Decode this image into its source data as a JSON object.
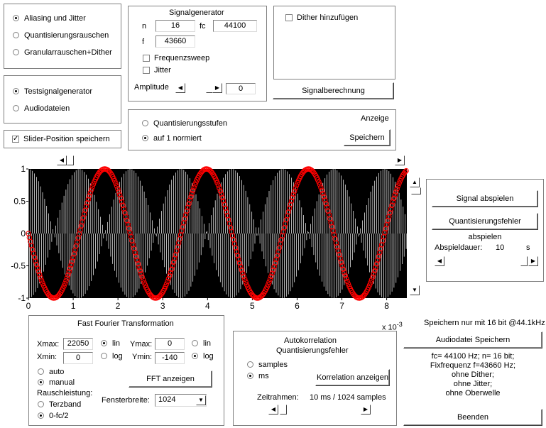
{
  "mode": {
    "options": [
      "Aliasing und Jitter",
      "Quantisierungsrauschen",
      "Granularrauschen+Dither"
    ],
    "selected": 0
  },
  "source": {
    "options": [
      "Testsignalgenerator",
      "Audiodateien"
    ],
    "selected": 0
  },
  "slider_save": {
    "label": "Slider-Position speichern",
    "checked": true
  },
  "generator": {
    "title": "Signalgenerator",
    "n_label": "n",
    "n_value": "16",
    "fc_label": "fc",
    "fc_value": "44100",
    "f_label": "f",
    "f_value": "43660",
    "freq_sweep": "Frequenzsweep",
    "jitter": "Jitter",
    "amplitude_label": "Amplitude",
    "amplitude_value": "0"
  },
  "dither": {
    "label": "Dither hinzufügen",
    "checked": false
  },
  "signal_calc_button": "Signalberechnung",
  "display": {
    "title": "Anzeige",
    "options": [
      "Quantisierungsstufen",
      "auf 1 normiert"
    ],
    "selected": 1,
    "save_button": "Speichern"
  },
  "chart_data": {
    "type": "line",
    "title": "",
    "xlabel": "",
    "ylabel": "",
    "x_multiplier_label": "x 10",
    "x_multiplier_exp": "-3",
    "xlim": [
      0,
      8.45
    ],
    "ylim": [
      -1,
      1
    ],
    "xticks": [
      "0",
      "1",
      "2",
      "3",
      "4",
      "5",
      "6",
      "7",
      "8"
    ],
    "yticks": [
      "1",
      "0.5",
      "0",
      "-0.5",
      "-1"
    ],
    "series": [
      {
        "description": "sampled signal (white stems on black)",
        "frequency_hz": 43660,
        "color": "#ffffff"
      },
      {
        "description": "aliased sine, red circle markers",
        "frequency_hz": 440,
        "amplitude": 1,
        "color": "#ff0000"
      }
    ]
  },
  "playback": {
    "play_button": "Signal abspielen",
    "error_button": "Quantisierungsfehler abspielen",
    "duration_label": "Abspieldauer:",
    "duration_value": "10",
    "duration_unit": "s"
  },
  "fft": {
    "title": "Fast Fourier Transformation",
    "xmax_label": "Xmax:",
    "xmax_value": "22050",
    "xmin_label": "Xmin:",
    "xmin_value": "0",
    "ymax_label": "Ymax:",
    "ymax_value": "0",
    "ymin_label": "Ymin:",
    "ymin_value": "-140",
    "x_lin": "lin",
    "x_log": "log",
    "x_scale": "lin",
    "y_lin": "lin",
    "y_log": "log",
    "y_scale": "log",
    "range_options": [
      "auto",
      "manual"
    ],
    "range_selected": 1,
    "noise_label": "Rauschleistung:",
    "noise_options": [
      "Terzband",
      "0-fc/2"
    ],
    "noise_selected": 1,
    "window_label": "Fensterbreite:",
    "window_value": "1024",
    "show_button": "FFT anzeigen"
  },
  "autocorr": {
    "title_line1": "Autokorrelation",
    "title_line2": "Quantisierungsfehler",
    "options": [
      "samples",
      "ms"
    ],
    "selected": 1,
    "show_button": "Korrelation anzeigen",
    "time_label": "Zeitrahmen:",
    "time_value": "10 ms / 1024 samples"
  },
  "save_note": "Speichern nur mit 16 bit @44.1kHz",
  "audio_save_button": "Audiodatei Speichern",
  "info": [
    "fc= 44100 Hz; n= 16 bit;",
    "Fixfrequenz f=43660 Hz;",
    "ohne Dither;",
    "ohne Jitter;",
    "ohne Oberwelle"
  ],
  "quit_button": "Beenden"
}
